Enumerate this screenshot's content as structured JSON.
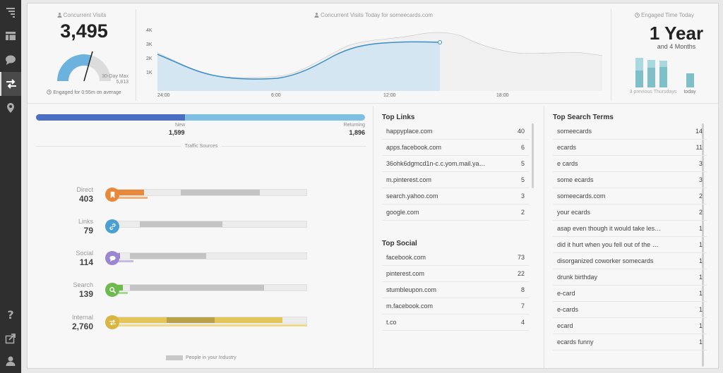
{
  "sidebar": {
    "items": [
      {
        "icon": "pages-icon"
      },
      {
        "icon": "dashboard-icon"
      },
      {
        "icon": "comment-icon"
      },
      {
        "icon": "traffic-icon",
        "active": true
      },
      {
        "icon": "location-icon"
      },
      {
        "icon": "help-icon",
        "label": "?"
      },
      {
        "icon": "share-icon"
      },
      {
        "icon": "user-icon"
      }
    ]
  },
  "visits": {
    "caption": "Concurrent Visits",
    "value": "3,495",
    "max_label": "30-Day Max",
    "max_value": "5,813",
    "engaged_text": "Engaged for 0:55m on average",
    "gauge_fraction": 0.6
  },
  "today_chart": {
    "caption": "Concurrent Visits Today for someecards.com",
    "y_ticks": [
      "4K",
      "3K",
      "2K",
      "1K"
    ],
    "x_ticks": [
      "24:00",
      "6:00",
      "12:00",
      "18:00"
    ]
  },
  "engaged_today": {
    "caption": "Engaged Time Today",
    "value": "1 Year",
    "sub": "and 4 Months",
    "left_label": "3 previous Thursdays",
    "right_label": "today"
  },
  "new_returning": {
    "new_label": "New",
    "new_value": "1,599",
    "returning_label": "Returning",
    "returning_value": "1,896",
    "new_fraction": 0.457
  },
  "traffic_sources": {
    "title": "Traffic Sources",
    "footer": "People in your Industry",
    "sources": [
      {
        "label": "Direct",
        "value": "403",
        "color": "#e8883a"
      },
      {
        "label": "Links",
        "value": "79",
        "color": "#4a9fd5"
      },
      {
        "label": "Social",
        "value": "114",
        "color": "#9b86d4"
      },
      {
        "label": "Search",
        "value": "139",
        "color": "#6fba4e"
      },
      {
        "label": "Internal",
        "value": "2,760",
        "color": "#d9b640"
      }
    ]
  },
  "top_links": {
    "title": "Top Links",
    "rows": [
      {
        "name": "happyplace.com",
        "count": "40"
      },
      {
        "name": "apps.facebook.com",
        "count": "6"
      },
      {
        "name": "36ohk6dgmcd1n-c.c.yom.mail.ya…",
        "count": "5"
      },
      {
        "name": "m.pinterest.com",
        "count": "5"
      },
      {
        "name": "search.yahoo.com",
        "count": "3"
      },
      {
        "name": "google.com",
        "count": "2"
      }
    ]
  },
  "top_social": {
    "title": "Top Social",
    "rows": [
      {
        "name": "facebook.com",
        "count": "73"
      },
      {
        "name": "pinterest.com",
        "count": "22"
      },
      {
        "name": "stumbleupon.com",
        "count": "8"
      },
      {
        "name": "m.facebook.com",
        "count": "7"
      },
      {
        "name": "t.co",
        "count": "4"
      }
    ]
  },
  "top_search": {
    "title": "Top Search Terms",
    "rows": [
      {
        "name": "someecards",
        "count": "14"
      },
      {
        "name": "ecards",
        "count": "11"
      },
      {
        "name": "e cards",
        "count": "3"
      },
      {
        "name": "some ecards",
        "count": "3"
      },
      {
        "name": "someecards.com",
        "count": "2"
      },
      {
        "name": "your ecards",
        "count": "2"
      },
      {
        "name": "asap even though it would take les…",
        "count": "1"
      },
      {
        "name": "did it hurt when you fell out of the …",
        "count": "1"
      },
      {
        "name": "disorganized coworker somecards",
        "count": "1"
      },
      {
        "name": "drunk birthday",
        "count": "1"
      },
      {
        "name": "e-card",
        "count": "1"
      },
      {
        "name": "e-cards",
        "count": "1"
      },
      {
        "name": "ecard",
        "count": "1"
      },
      {
        "name": "ecards funny",
        "count": "1"
      }
    ]
  }
}
